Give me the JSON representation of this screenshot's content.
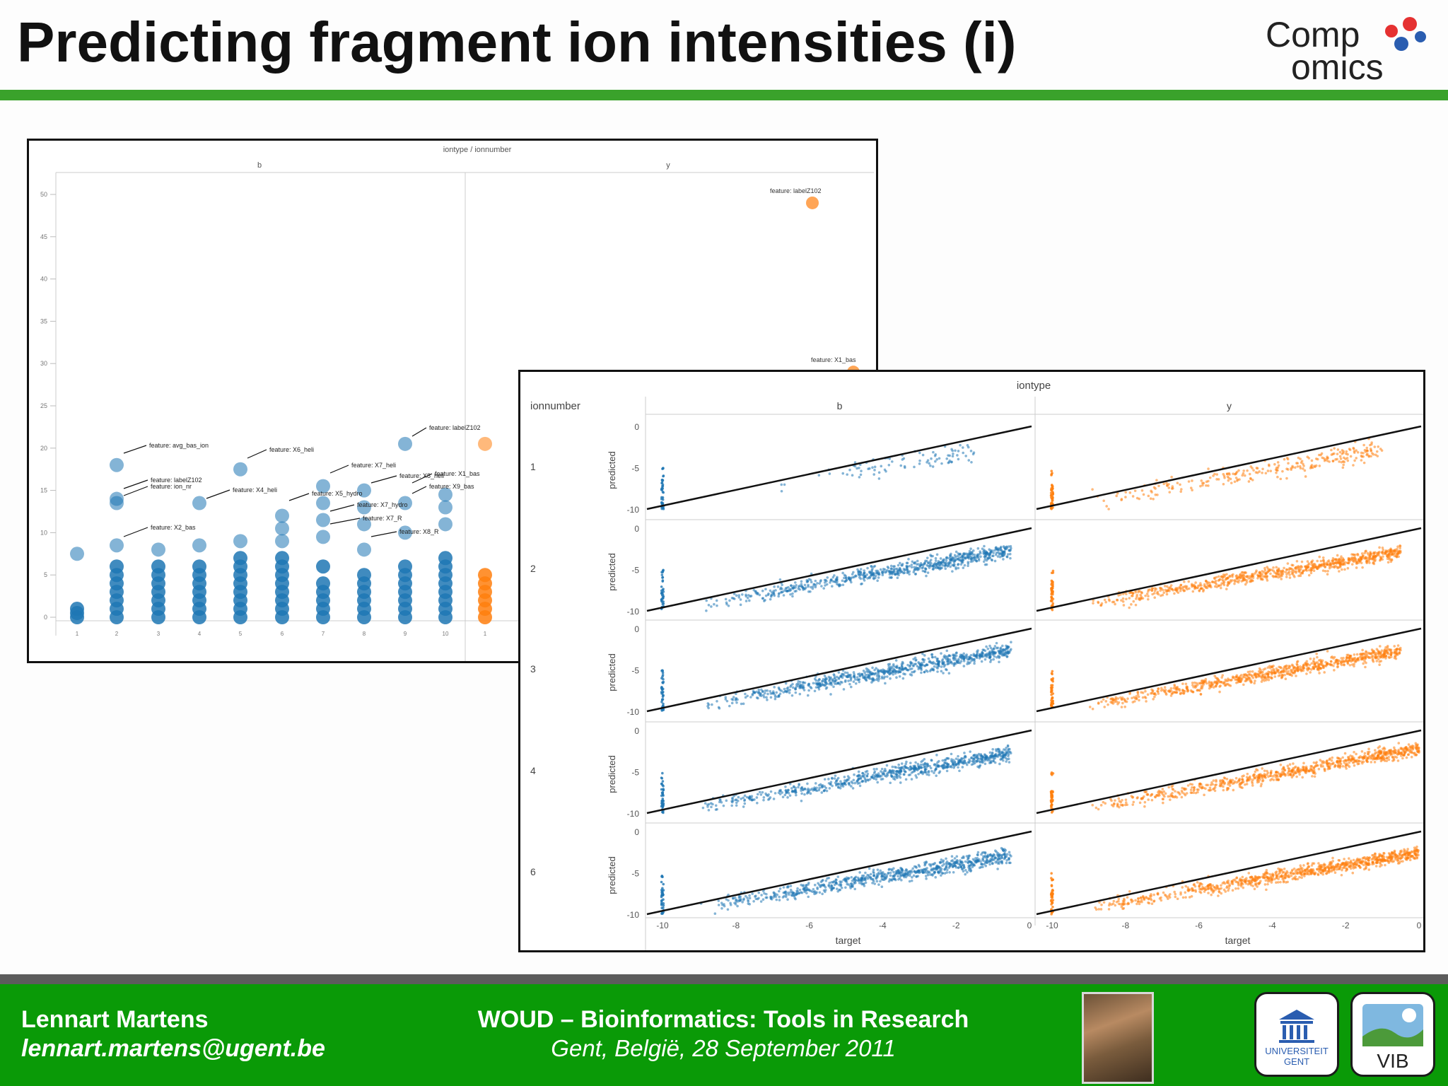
{
  "slide": {
    "title": "Predicting fragment ion intensities (i)",
    "accent_color": "#3aa22b"
  },
  "logo": {
    "line1": "Comp",
    "line2": "omics",
    "dot_colors": [
      "#e53131",
      "#2a5db0"
    ]
  },
  "footer": {
    "author": "Lennart Martens",
    "email": "lennart.martens@ugent.be",
    "event": "WOUD – Bioinformatics: Tools in Research",
    "place": "Gent, België, 28 September 2011",
    "ugent_label_1": "UNIVERSITEIT",
    "ugent_label_2": "GENT",
    "vib_label": "VIB",
    "bg_color": "#0a9a07"
  },
  "chart_data": [
    {
      "type": "scatter",
      "title": "iontype / ionnumber",
      "facets": [
        "b",
        "y"
      ],
      "ylim": [
        0,
        50
      ],
      "yticks": [
        "50",
        "45",
        "40",
        "35",
        "30",
        "25",
        "20",
        "15",
        "10",
        "5",
        "0"
      ],
      "colors": {
        "b": "#1f77b4",
        "y": "#ff7f0e"
      },
      "columns": [
        {
          "facet": "b",
          "values": [
            0,
            0.5,
            1,
            7.5
          ]
        },
        {
          "facet": "b",
          "values": [
            0,
            1,
            2,
            3,
            4,
            5,
            6,
            8.5,
            13.5,
            14,
            18
          ]
        },
        {
          "facet": "b",
          "values": [
            0,
            1,
            2,
            3,
            4,
            5,
            6,
            8
          ]
        },
        {
          "facet": "b",
          "values": [
            0,
            1,
            2,
            3,
            4,
            5,
            6,
            8.5,
            13.5
          ]
        },
        {
          "facet": "b",
          "values": [
            0,
            1,
            2,
            3,
            4,
            5,
            6,
            7,
            9,
            17.5
          ]
        },
        {
          "facet": "b",
          "values": [
            0,
            1,
            2,
            3,
            4,
            5,
            6,
            7,
            9,
            10.5,
            12
          ]
        },
        {
          "facet": "b",
          "values": [
            0,
            1,
            2,
            3,
            4,
            6,
            9.5,
            11.5,
            13.5,
            15.5
          ]
        },
        {
          "facet": "b",
          "values": [
            0,
            1,
            2,
            3,
            4,
            5,
            8,
            11,
            13,
            15
          ]
        },
        {
          "facet": "b",
          "values": [
            0,
            1,
            2,
            3,
            4,
            5,
            6,
            10,
            13.5,
            20.5
          ]
        },
        {
          "facet": "b",
          "values": [
            0,
            1,
            2,
            3,
            4,
            5,
            6,
            7,
            11,
            13,
            14.5
          ]
        },
        {
          "facet": "y",
          "values": [
            0,
            1,
            2,
            3,
            4,
            5,
            20.5
          ]
        }
      ],
      "annotations": [
        {
          "label": "feature: avg_bas_ion"
        },
        {
          "label": "feature: labelZ102"
        },
        {
          "label": "feature: ion_nr"
        },
        {
          "label": "feature: X2_bas"
        },
        {
          "label": "feature: X6_heli"
        },
        {
          "label": "feature: X4_heli"
        },
        {
          "label": "feature: X7_heli"
        },
        {
          "label": "feature: X5_hydro"
        },
        {
          "label": "feature: X7_hydro"
        },
        {
          "label": "feature: X8_heli"
        },
        {
          "label": "feature: X9_bas"
        },
        {
          "label": "feature: X7_R"
        },
        {
          "label": "feature: X8_R"
        },
        {
          "label": "feature: labelZ102"
        },
        {
          "label": "feature: X1_bas"
        }
      ],
      "outliers": [
        {
          "facet": "y",
          "value": 49,
          "label": "feature: labelZ102"
        },
        {
          "facet": "y",
          "value": 29,
          "label": "feature: X1_bas"
        }
      ],
      "xticks": [
        "1",
        "2",
        "3",
        "4",
        "5",
        "6",
        "7",
        "8",
        "9",
        "10",
        "1"
      ]
    },
    {
      "type": "scatter",
      "title": "iontype",
      "row_header": "ionnumber",
      "columns": [
        "b",
        "y"
      ],
      "rows": [
        "1",
        "2",
        "3",
        "4",
        "6"
      ],
      "xlabel": "target",
      "ylabel": "predicted",
      "xlim": [
        -10,
        0
      ],
      "ylim": [
        -10,
        0
      ],
      "xticks": [
        "-10",
        "-8",
        "-6",
        "-4",
        "-2",
        "0"
      ],
      "yticks": [
        "0",
        "-5",
        "-10"
      ],
      "reference_line": "y = x",
      "colors": {
        "b": "#1f77b4",
        "y": "#ff7f0e"
      },
      "panels": [
        {
          "row": "1",
          "col": "b",
          "x_range": [
            -7,
            -1.5
          ],
          "intercept": -1.8,
          "slope": 0.75,
          "spread": 1.2,
          "n": 90
        },
        {
          "row": "1",
          "col": "y",
          "x_range": [
            -9,
            -1
          ],
          "intercept": -2.0,
          "slope": 0.8,
          "spread": 1.1,
          "n": 260
        },
        {
          "row": "2",
          "col": "b",
          "x_range": [
            -9,
            -0.5
          ],
          "intercept": -2.3,
          "slope": 0.78,
          "spread": 0.9,
          "n": 700
        },
        {
          "row": "2",
          "col": "y",
          "x_range": [
            -9,
            -0.5
          ],
          "intercept": -2.6,
          "slope": 0.72,
          "spread": 0.8,
          "n": 750
        },
        {
          "row": "3",
          "col": "b",
          "x_range": [
            -9,
            -0.5
          ],
          "intercept": -2.2,
          "slope": 0.78,
          "spread": 0.9,
          "n": 750
        },
        {
          "row": "3",
          "col": "y",
          "x_range": [
            -9,
            -0.5
          ],
          "intercept": -2.3,
          "slope": 0.78,
          "spread": 0.8,
          "n": 750
        },
        {
          "row": "4",
          "col": "b",
          "x_range": [
            -9,
            -0.5
          ],
          "intercept": -2.4,
          "slope": 0.76,
          "spread": 0.9,
          "n": 700
        },
        {
          "row": "4",
          "col": "y",
          "x_range": [
            -9,
            0
          ],
          "intercept": -2.2,
          "slope": 0.8,
          "spread": 0.8,
          "n": 750
        },
        {
          "row": "6",
          "col": "b",
          "x_range": [
            -9,
            -0.5
          ],
          "intercept": -2.6,
          "slope": 0.72,
          "spread": 0.9,
          "n": 750
        },
        {
          "row": "6",
          "col": "y",
          "x_range": [
            -9,
            0
          ],
          "intercept": -2.6,
          "slope": 0.74,
          "spread": 0.8,
          "n": 850
        }
      ],
      "stack_at_min": {
        "x": -10,
        "y_range": [
          -10,
          -5
        ]
      }
    }
  ]
}
